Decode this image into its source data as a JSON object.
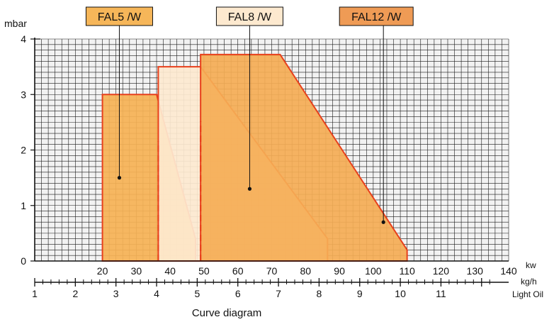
{
  "chart_data": {
    "type": "area",
    "title": "",
    "caption": "Curve diagram",
    "ylabel": "mbar",
    "xlabel_kw": "kw",
    "xlabel_oil_line1": "kg/h",
    "xlabel_oil_line2": "Light Oil",
    "grid": true,
    "xlim": [
      0,
      140
    ],
    "ylim": [
      0,
      4
    ],
    "x_ticks": [
      20,
      30,
      40,
      50,
      60,
      70,
      80,
      90,
      100,
      110,
      120,
      130,
      140
    ],
    "y_ticks": [
      0,
      1,
      2,
      3,
      4
    ],
    "oil_ticks": [
      {
        "label": "1",
        "kw": 0
      },
      {
        "label": "2",
        "kw": 12
      },
      {
        "label": "3",
        "kw": 24
      },
      {
        "label": "4",
        "kw": 36
      },
      {
        "label": "5",
        "kw": 48
      },
      {
        "label": "6",
        "kw": 60
      },
      {
        "label": "7",
        "kw": 72
      },
      {
        "label": "8",
        "kw": 84
      },
      {
        "label": "9",
        "kw": 96
      },
      {
        "label": "10",
        "kw": 108
      },
      {
        "label": "11",
        "kw": 120
      }
    ],
    "series": [
      {
        "name": "FAL5 /W",
        "color": "#f6b255",
        "label_color": "#f6b659",
        "points": [
          [
            20,
            0
          ],
          [
            20,
            3.0
          ],
          [
            36,
            3.0
          ],
          [
            47.5,
            0.4
          ],
          [
            47.5,
            0
          ]
        ],
        "dashed_x": 36.5,
        "dot": [
          25,
          1.5
        ],
        "label_anchor_kw": 25
      },
      {
        "name": "FAL8 /W",
        "color": "#fde9d0",
        "label_color": "#fde9cf",
        "points": [
          [
            36.5,
            0
          ],
          [
            36.5,
            3.5
          ],
          [
            49,
            3.5
          ],
          [
            86.5,
            0.4
          ],
          [
            86.5,
            0
          ]
        ],
        "dashed_x": 49,
        "dot": [
          63.5,
          1.3
        ],
        "label_anchor_kw": 63.5
      },
      {
        "name": "FAL12 /W",
        "color": "#f5ad55",
        "label_color": "#ef9b55",
        "points": [
          [
            49,
            0
          ],
          [
            49,
            3.72
          ],
          [
            72.5,
            3.72
          ],
          [
            110,
            0.2
          ],
          [
            110,
            0
          ]
        ],
        "dot": [
          103,
          0.7
        ],
        "label_anchor_kw": 103
      }
    ]
  }
}
